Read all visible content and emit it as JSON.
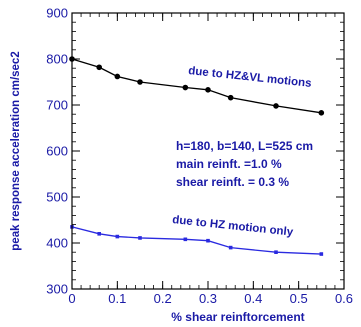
{
  "chart_data": {
    "type": "line",
    "xlabel": "% shear reinftorcement",
    "ylabel": "peak response acceleration cm/sec2",
    "xlim": [
      0,
      0.6
    ],
    "ylim": [
      300,
      900
    ],
    "x_ticks": [
      "0",
      "0.1",
      "0.2",
      "0.3",
      "0.4",
      "0.5",
      "0.6"
    ],
    "y_ticks": [
      "300",
      "400",
      "500",
      "600",
      "700",
      "800",
      "900"
    ],
    "grid": false,
    "colors": {
      "hz_vl": "#000000",
      "hz": "#2a2ae0",
      "text": "#1a1aa6"
    },
    "series": [
      {
        "name": "due to HZ&VL motions",
        "marker": "circle",
        "x": [
          0,
          0.06,
          0.1,
          0.15,
          0.25,
          0.3,
          0.35,
          0.45,
          0.55
        ],
        "y": [
          800,
          782,
          762,
          750,
          738,
          733,
          716,
          698,
          683
        ]
      },
      {
        "name": "due to HZ motion only",
        "marker": "square",
        "x": [
          0,
          0.06,
          0.1,
          0.15,
          0.25,
          0.3,
          0.35,
          0.45,
          0.55
        ],
        "y": [
          435,
          420,
          414,
          411,
          408,
          405,
          390,
          380,
          376
        ]
      }
    ],
    "annotations": [
      "h=180, b=140, L=525 cm",
      "main reinft. =1.0 %",
      "shear reinft. = 0.3 %"
    ]
  }
}
